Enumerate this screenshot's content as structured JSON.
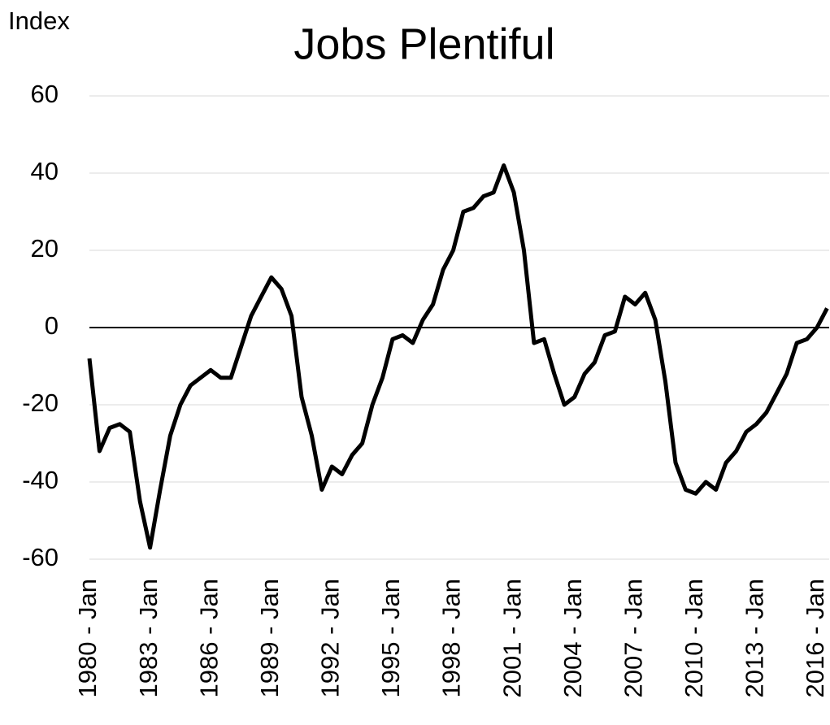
{
  "chart_data": {
    "type": "line",
    "title": "Jobs Plentiful",
    "y_label": "Index",
    "categories": [
      "1980 - Jan",
      null,
      null,
      null,
      null,
      null,
      "1983 - Jan",
      null,
      null,
      null,
      null,
      null,
      "1986 - Jan",
      null,
      null,
      null,
      null,
      null,
      "1989 - Jan",
      null,
      null,
      null,
      null,
      null,
      "1992 - Jan",
      null,
      null,
      null,
      null,
      null,
      "1995 - Jan",
      null,
      null,
      null,
      null,
      null,
      "1998 - Jan",
      null,
      null,
      null,
      null,
      null,
      "2001 - Jan",
      null,
      null,
      null,
      null,
      null,
      "2004 - Jan",
      null,
      null,
      null,
      null,
      null,
      "2007 - Jan",
      null,
      null,
      null,
      null,
      null,
      "2010 - Jan",
      null,
      null,
      null,
      null,
      null,
      "2013 - Jan",
      null,
      null,
      null,
      null,
      null,
      "2016 - Jan",
      null
    ],
    "series": [
      {
        "name": "Jobs Plentiful",
        "color": "#000000",
        "values": [
          -8,
          -32,
          -26,
          -25,
          -27,
          -45,
          -57,
          -42,
          -28,
          -20,
          -15,
          -13,
          -11,
          -13,
          -13,
          -5,
          3,
          8,
          13,
          10,
          3,
          -18,
          -28,
          -42,
          -36,
          -38,
          -33,
          -30,
          -20,
          -13,
          -3,
          -2,
          -4,
          2,
          6,
          15,
          20,
          30,
          31,
          34,
          35,
          42,
          35,
          20,
          -4,
          -3,
          -12,
          -20,
          -18,
          -12,
          -9,
          -2,
          -1,
          8,
          6,
          9,
          2,
          -14,
          -35,
          -42,
          -43,
          -40,
          -42,
          -35,
          -32,
          -27,
          -25,
          -22,
          -17,
          -12,
          -4,
          -3,
          0,
          5
        ]
      }
    ],
    "ylim": [
      -60,
      60
    ],
    "yticks": [
      -60,
      -40,
      -20,
      0,
      20,
      40,
      60
    ],
    "grid": true
  }
}
